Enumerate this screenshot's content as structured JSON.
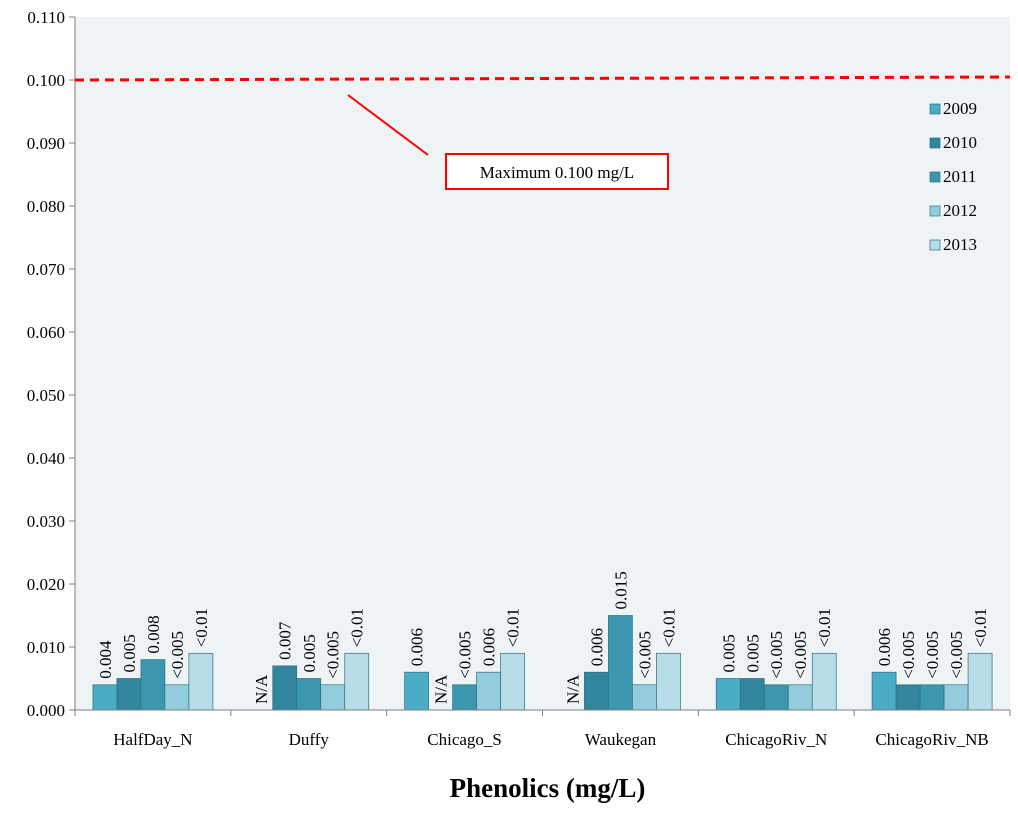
{
  "chart_data": {
    "type": "bar",
    "xlabel": "Phenolics (mg/L)",
    "ylabel": "",
    "ylim": [
      0,
      0.11
    ],
    "yticks": [
      "0.000",
      "0.010",
      "0.020",
      "0.030",
      "0.040",
      "0.050",
      "0.060",
      "0.070",
      "0.080",
      "0.090",
      "0.100",
      "0.110"
    ],
    "grid": false,
    "legend_position": "right",
    "categories": [
      "HalfDay_N",
      "Duffy",
      "Chicago_S",
      "Waukegan",
      "ChicagoRiv_N",
      "ChicagoRiv_NB"
    ],
    "series": [
      {
        "name": "2009",
        "color": "#4bacc6",
        "values": [
          0.004,
          0,
          0.006,
          0,
          0.005,
          0.006
        ],
        "labels": [
          "0.004",
          "N/A",
          "0.006",
          "N/A",
          "0.005",
          "0.006"
        ]
      },
      {
        "name": "2010",
        "color": "#31859c",
        "values": [
          0.005,
          0.007,
          0,
          0.006,
          0.005,
          0.004
        ],
        "labels": [
          "0.005",
          "0.007",
          "N/A",
          "0.006",
          "0.005",
          "<0.005"
        ]
      },
      {
        "name": "2011",
        "color": "#3b97ad",
        "values": [
          0.008,
          0.005,
          0.004,
          0.015,
          0.004,
          0.004
        ],
        "labels": [
          "0.008",
          "0.005",
          "<0.005",
          "0.015",
          "<0.005",
          "<0.005"
        ]
      },
      {
        "name": "2012",
        "color": "#93cddd",
        "values": [
          0.004,
          0.004,
          0.006,
          0.004,
          0.004,
          0.004
        ],
        "labels": [
          "<0.005",
          "<0.005",
          "0.006",
          "<0.005",
          "<0.005",
          "<0.005"
        ]
      },
      {
        "name": "2013",
        "color": "#b7dde8",
        "values": [
          0.009,
          0.009,
          0.009,
          0.009,
          0.009,
          0.009
        ],
        "labels": [
          "<0.01",
          "<0.01",
          "<0.01",
          "<0.01",
          "<0.01",
          "<0.01"
        ]
      }
    ],
    "reference_line": {
      "value": 0.1,
      "color": "#ff0000",
      "style": "dashed"
    },
    "annotation": {
      "text": "Maximum  0.100 mg/L",
      "border_color": "#ff0000"
    },
    "plot_background": "#eef3f5"
  }
}
